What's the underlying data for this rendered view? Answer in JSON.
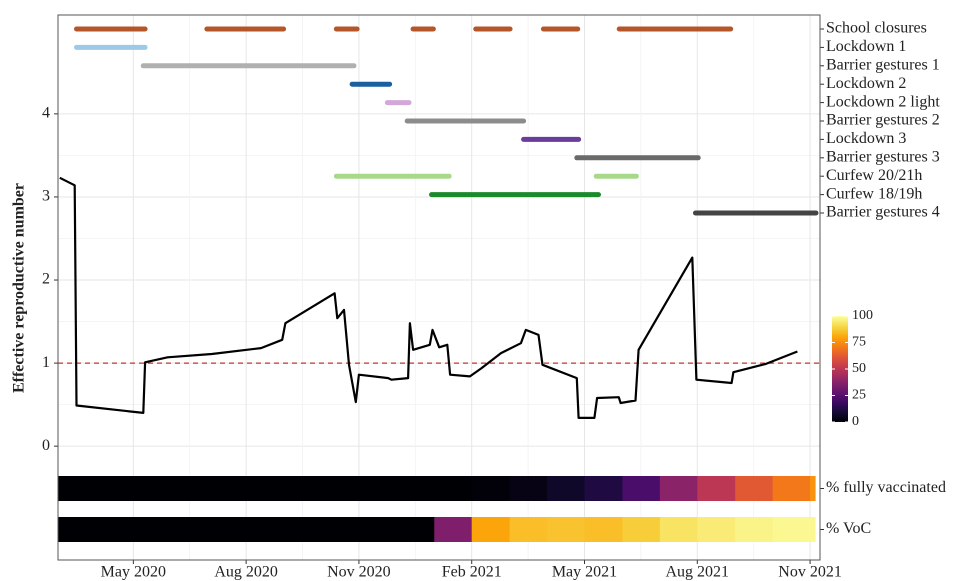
{
  "chart_data": {
    "type": "line",
    "ylabel": "Effective reproductive number",
    "xlim": [
      2020.166,
      2021.855
    ],
    "xticks": [
      {
        "value": 2020.333,
        "label": "May 2020"
      },
      {
        "value": 2020.583,
        "label": "Aug 2020"
      },
      {
        "value": 2020.833,
        "label": "Nov 2020"
      },
      {
        "value": 2021.083,
        "label": "Feb 2021"
      },
      {
        "value": 2021.333,
        "label": "May 2021"
      },
      {
        "value": 2021.583,
        "label": "Aug 2021"
      },
      {
        "value": 2021.833,
        "label": "Nov 2021"
      }
    ],
    "ylim": [
      -1.37,
      5.19
    ],
    "yticks": [
      0,
      1,
      2,
      3,
      4
    ],
    "grid": true,
    "color": "#000000",
    "x": [
      2020.17,
      2020.203,
      2020.207,
      2020.355,
      2020.359,
      2020.409,
      2020.507,
      2020.616,
      2020.663,
      2020.67,
      2020.779,
      2020.785,
      2020.8,
      2020.811,
      2020.826,
      2020.833,
      2020.898,
      2020.905,
      2020.942,
      2020.946,
      2020.953,
      2020.99,
      2020.996,
      2021.011,
      2021.029,
      2021.035,
      2021.079,
      2021.105,
      2021.148,
      2021.192,
      2021.203,
      2021.231,
      2021.24,
      2021.316,
      2021.32,
      2021.355,
      2021.361,
      2021.409,
      2021.413,
      2021.446,
      2021.453,
      2021.572,
      2021.581,
      2021.659,
      2021.663,
      2021.735,
      2021.805
    ],
    "values": [
      3.23,
      3.14,
      0.49,
      0.4,
      1.01,
      1.07,
      1.11,
      1.18,
      1.28,
      1.48,
      1.84,
      1.54,
      1.64,
      0.98,
      0.53,
      0.86,
      0.82,
      0.8,
      0.82,
      1.48,
      1.16,
      1.22,
      1.4,
      1.19,
      1.22,
      0.86,
      0.84,
      0.94,
      1.12,
      1.24,
      1.4,
      1.34,
      0.98,
      0.82,
      0.34,
      0.34,
      0.58,
      0.59,
      0.52,
      0.55,
      1.16,
      2.27,
      0.8,
      0.76,
      0.89,
      0.99,
      1.14
    ],
    "hline": 1,
    "hline_color": "#c0392b",
    "interventions": [
      {
        "name": "School closures",
        "color": "#b5562a",
        "periods": [
          [
            2020.207,
            2020.359
          ],
          [
            2020.496,
            2020.666
          ],
          [
            2020.783,
            2020.829
          ],
          [
            2020.953,
            2020.998
          ],
          [
            2021.092,
            2021.168
          ],
          [
            2021.242,
            2021.318
          ],
          [
            2021.41,
            2021.657
          ]
        ]
      },
      {
        "name": "Lockdown 1",
        "color": "#9dc9e8",
        "periods": [
          [
            2020.207,
            2020.359
          ]
        ]
      },
      {
        "name": "Barrier gestures 1",
        "color": "#b0b0b0",
        "periods": [
          [
            2020.355,
            2020.822
          ]
        ]
      },
      {
        "name": "Lockdown 2",
        "color": "#1a5fa0",
        "periods": [
          [
            2020.818,
            2020.901
          ]
        ]
      },
      {
        "name": "Lockdown 2 light",
        "color": "#d2a8d8",
        "periods": [
          [
            2020.896,
            2020.944
          ]
        ]
      },
      {
        "name": "Barrier gestures 2",
        "color": "#8c8c8c",
        "periods": [
          [
            2020.94,
            2021.198
          ]
        ]
      },
      {
        "name": "Lockdown 3",
        "color": "#6a3d9a",
        "periods": [
          [
            2021.198,
            2021.32
          ]
        ]
      },
      {
        "name": "Barrier gestures 3",
        "color": "#6a6a6a",
        "periods": [
          [
            2021.316,
            2021.585
          ]
        ]
      },
      {
        "name": "Curfew 20/21h",
        "color": "#a8d88a",
        "periods": [
          [
            2020.783,
            2021.033
          ],
          [
            2021.359,
            2021.448
          ]
        ]
      },
      {
        "name": "Curfew 18/19h",
        "color": "#1a8a2a",
        "periods": [
          [
            2020.994,
            2021.364
          ]
        ]
      },
      {
        "name": "Barrier gestures 4",
        "color": "#444444",
        "periods": [
          [
            2021.579,
            2021.855
          ]
        ]
      }
    ],
    "colorscale": "inferno",
    "clim": [
      0,
      100
    ],
    "cticks": [
      0,
      25,
      50,
      75,
      100
    ],
    "strips": [
      {
        "name": "% fully vaccinated",
        "x": [
          2020.167,
          2020.25,
          2020.333,
          2020.417,
          2020.5,
          2020.583,
          2020.667,
          2020.75,
          2020.833,
          2020.917,
          2021.0,
          2021.083,
          2021.167,
          2021.25,
          2021.333,
          2021.417,
          2021.5,
          2021.583,
          2021.667,
          2021.75,
          2021.833
        ],
        "values": [
          0,
          0,
          0,
          0,
          0,
          0,
          0,
          0,
          0,
          0,
          0,
          1,
          3,
          7,
          12,
          22,
          38,
          50,
          62,
          70,
          76
        ]
      },
      {
        "name": "% VoC",
        "x": [
          2020.167,
          2020.25,
          2020.333,
          2020.417,
          2020.5,
          2020.583,
          2020.667,
          2020.75,
          2020.833,
          2020.917,
          2021.0,
          2021.083,
          2021.167,
          2021.25,
          2021.333,
          2021.417,
          2021.5,
          2021.583,
          2021.667,
          2021.75,
          2021.833
        ],
        "values": [
          0,
          0,
          0,
          0,
          0,
          0,
          0,
          0,
          0,
          0,
          35,
          80,
          85,
          86,
          85,
          88,
          93,
          95,
          97,
          98,
          98
        ]
      }
    ]
  }
}
